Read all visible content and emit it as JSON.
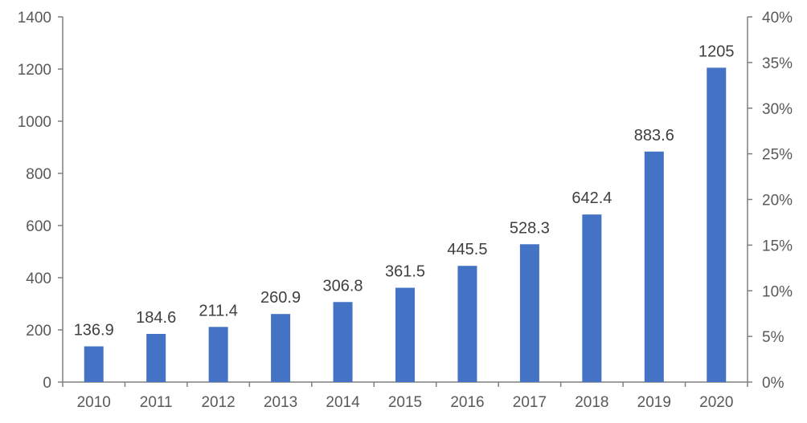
{
  "chart_data": {
    "type": "bar",
    "title": "",
    "xlabel": "",
    "ylabel": "",
    "categories": [
      "2010",
      "2011",
      "2012",
      "2013",
      "2014",
      "2015",
      "2016",
      "2017",
      "2018",
      "2019",
      "2020"
    ],
    "series": [
      {
        "values": [
          136.9,
          184.6,
          211.4,
          260.9,
          306.8,
          361.5,
          445.5,
          528.3,
          642.4,
          883.6,
          1205
        ]
      }
    ],
    "data_labels": [
      "136.9",
      "184.6",
      "211.4",
      "260.9",
      "306.8",
      "361.5",
      "445.5",
      "528.3",
      "642.4",
      "883.6",
      "1205"
    ],
    "ylim": [
      0,
      1400
    ],
    "y_ticks": [
      "0",
      "200",
      "400",
      "600",
      "800",
      "1000",
      "1200",
      "1400"
    ],
    "y2lim": [
      0,
      40
    ],
    "y2_ticks": [
      "0%",
      "5%",
      "10%",
      "15%",
      "20%",
      "25%",
      "30%",
      "35%",
      "40%"
    ],
    "grid": false,
    "legend": "none",
    "bar_color": "#4472c4",
    "axis_color": "#7f7f7f",
    "label_color": "#595959"
  }
}
